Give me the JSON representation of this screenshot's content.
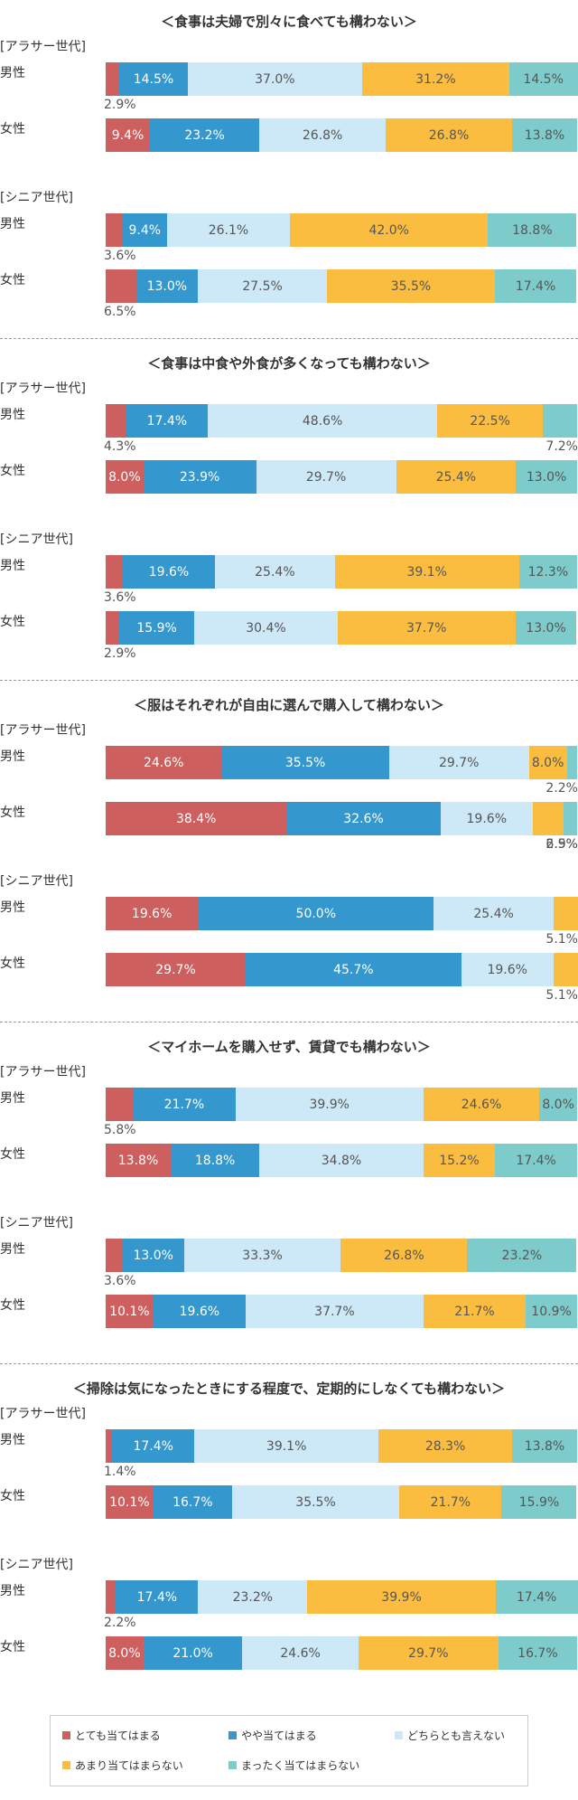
{
  "colors": {
    "very_true": "#cd5f5e",
    "somewhat_true": "#3498cf",
    "neither": "#cde9f8",
    "not_really": "#fbbd3f",
    "not_at_all": "#7ecbcb"
  },
  "chart_data": {
    "type": "bar",
    "stacked": true,
    "orientation": "horizontal",
    "unit": "%",
    "xlim": [
      0,
      100
    ],
    "legend": [
      {
        "key": "very_true",
        "label": "とても当てはまる"
      },
      {
        "key": "somewhat_true",
        "label": "やや当てはまる"
      },
      {
        "key": "neither",
        "label": "どちらとも言えない"
      },
      {
        "key": "not_really",
        "label": "あまり当てはまらない"
      },
      {
        "key": "not_at_all",
        "label": "まったく当てはまらない"
      }
    ],
    "sections": [
      {
        "title": "＜食事は夫婦で別々に食べても構わない＞",
        "groups": [
          {
            "label": "[アラサー世代]",
            "rows": [
              {
                "label": "男性",
                "values": [
                  2.9,
                  14.5,
                  37.0,
                  31.2,
                  14.5
                ]
              },
              {
                "label": "女性",
                "values": [
                  9.4,
                  23.2,
                  26.8,
                  26.8,
                  13.8
                ]
              }
            ]
          },
          {
            "label": "[シニア世代]",
            "rows": [
              {
                "label": "男性",
                "values": [
                  3.6,
                  9.4,
                  26.1,
                  42.0,
                  18.8
                ]
              },
              {
                "label": "女性",
                "values": [
                  6.5,
                  13.0,
                  27.5,
                  35.5,
                  17.4
                ]
              }
            ]
          }
        ]
      },
      {
        "title": "＜食事は中食や外食が多くなっても構わない＞",
        "groups": [
          {
            "label": "[アラサー世代]",
            "rows": [
              {
                "label": "男性",
                "values": [
                  4.3,
                  17.4,
                  48.6,
                  22.5,
                  7.2
                ]
              },
              {
                "label": "女性",
                "values": [
                  8.0,
                  23.9,
                  29.7,
                  25.4,
                  13.0
                ]
              }
            ]
          },
          {
            "label": "[シニア世代]",
            "rows": [
              {
                "label": "男性",
                "values": [
                  3.6,
                  19.6,
                  25.4,
                  39.1,
                  12.3
                ]
              },
              {
                "label": "女性",
                "values": [
                  2.9,
                  15.9,
                  30.4,
                  37.7,
                  13.0
                ]
              }
            ]
          }
        ]
      },
      {
        "title": "＜服はそれぞれが自由に選んで購入して構わない＞",
        "groups": [
          {
            "label": "[アラサー世代]",
            "rows": [
              {
                "label": "男性",
                "values": [
                  24.6,
                  35.5,
                  29.7,
                  8.0,
                  2.2
                ]
              },
              {
                "label": "女性",
                "values": [
                  38.4,
                  32.6,
                  19.6,
                  6.5,
                  2.9
                ]
              }
            ]
          },
          {
            "label": "[シニア世代]",
            "rows": [
              {
                "label": "男性",
                "values": [
                  19.6,
                  50.0,
                  25.4,
                  5.1,
                  0
                ]
              },
              {
                "label": "女性",
                "values": [
                  29.7,
                  45.7,
                  19.6,
                  5.1,
                  0
                ]
              }
            ]
          }
        ]
      },
      {
        "title": "＜マイホームを購入せず、賃貸でも構わない＞",
        "groups": [
          {
            "label": "[アラサー世代]",
            "rows": [
              {
                "label": "男性",
                "values": [
                  5.8,
                  21.7,
                  39.9,
                  24.6,
                  8.0
                ]
              },
              {
                "label": "女性",
                "values": [
                  13.8,
                  18.8,
                  34.8,
                  15.2,
                  17.4
                ]
              }
            ]
          },
          {
            "label": "[シニア世代]",
            "rows": [
              {
                "label": "男性",
                "values": [
                  3.6,
                  13.0,
                  33.3,
                  26.8,
                  23.2
                ]
              },
              {
                "label": "女性",
                "values": [
                  10.1,
                  19.6,
                  37.7,
                  21.7,
                  10.9
                ]
              }
            ]
          }
        ]
      },
      {
        "title": "＜掃除は気になったときにする程度で、定期的にしなくても構わない＞",
        "groups": [
          {
            "label": "[アラサー世代]",
            "rows": [
              {
                "label": "男性",
                "values": [
                  1.4,
                  17.4,
                  39.1,
                  28.3,
                  13.8
                ]
              },
              {
                "label": "女性",
                "values": [
                  10.1,
                  16.7,
                  35.5,
                  21.7,
                  15.9
                ]
              }
            ]
          },
          {
            "label": "[シニア世代]",
            "rows": [
              {
                "label": "男性",
                "values": [
                  2.2,
                  17.4,
                  23.2,
                  39.9,
                  17.4
                ]
              },
              {
                "label": "女性",
                "values": [
                  8.0,
                  21.0,
                  24.6,
                  29.7,
                  16.7
                ]
              }
            ]
          }
        ]
      }
    ]
  }
}
